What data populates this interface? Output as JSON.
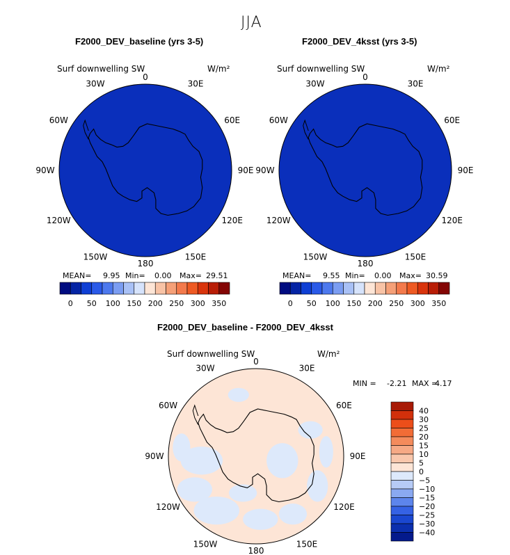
{
  "figure": {
    "season": "JJA"
  },
  "chart_data": [
    {
      "type": "heatmap",
      "title": "F2000_DEV_baseline (yrs 3-5)",
      "variable": "Surf downwelling SW",
      "units": "W/m²",
      "projection": "south polar stereographic",
      "field": "uniform 0–50 W/m² (polar night)",
      "fill_color": "#0a2fbb",
      "stats": {
        "mean_label": "MEAN=",
        "mean": "9.95",
        "min_label": "Min=",
        "min": "0.00",
        "max_label": "Max=",
        "max": "29.51"
      },
      "colorbar": {
        "orientation": "horizontal",
        "tick_labels": [
          "0",
          "50",
          "100",
          "150",
          "200",
          "250",
          "300",
          "350"
        ],
        "colors": [
          "#000c80",
          "#0524a4",
          "#0f3fd4",
          "#2a5ae8",
          "#4d79ee",
          "#7b9df2",
          "#a9c1f6",
          "#d6e3fb",
          "#fde5d6",
          "#f8c3a6",
          "#f5a078",
          "#f37a4c",
          "#ee5a23",
          "#d9340c",
          "#b81d06",
          "#830504"
        ]
      },
      "lon_labels": [
        "0",
        "30E",
        "60E",
        "90E",
        "120E",
        "150E",
        "180",
        "150W",
        "120W",
        "90W",
        "60W",
        "30W"
      ]
    },
    {
      "type": "heatmap",
      "title": "F2000_DEV_4ksst (yrs 3-5)",
      "variable": "Surf downwelling SW",
      "units": "W/m²",
      "projection": "south polar stereographic",
      "field": "uniform 0–50 W/m² (polar night)",
      "fill_color": "#0a2fbb",
      "stats": {
        "mean_label": "MEAN=",
        "mean": "9.55",
        "min_label": "Min=",
        "min": "0.00",
        "max_label": "Max=",
        "max": "30.59"
      },
      "colorbar": {
        "orientation": "horizontal",
        "tick_labels": [
          "0",
          "50",
          "100",
          "150",
          "200",
          "250",
          "300",
          "350"
        ],
        "colors": [
          "#000c80",
          "#0524a4",
          "#0f3fd4",
          "#2a5ae8",
          "#4d79ee",
          "#7b9df2",
          "#a9c1f6",
          "#d6e3fb",
          "#fde5d6",
          "#f8c3a6",
          "#f5a078",
          "#f37a4c",
          "#ee5a23",
          "#d9340c",
          "#b81d06",
          "#830504"
        ]
      },
      "lon_labels": [
        "0",
        "30E",
        "60E",
        "90E",
        "120E",
        "150E",
        "180",
        "150W",
        "120W",
        "90W",
        "60W",
        "30W"
      ]
    },
    {
      "type": "heatmap",
      "title": "F2000_DEV_baseline - F2000_DEV_4ksst",
      "variable": "Surf downwelling SW",
      "units": "W/m²",
      "projection": "south polar stereographic",
      "field": "mostly 0 to 5 W/m² with patches of -5 to 0",
      "fill_color": "#fde5d6",
      "patch_color": "#dde9fb",
      "stats": {
        "min_label": "MIN =",
        "min": "-2.21",
        "max_label": "MAX =",
        "max": "4.17"
      },
      "colorbar": {
        "orientation": "vertical",
        "tick_labels": [
          "40",
          "30",
          "25",
          "20",
          "15",
          "10",
          "5",
          "0",
          "−5",
          "−10",
          "−15",
          "−20",
          "−25",
          "−30",
          "−40"
        ],
        "colors": [
          "#a81a06",
          "#d2300b",
          "#ec4e1a",
          "#f26c36",
          "#f48b5c",
          "#f6a985",
          "#f9c7ac",
          "#fde5d6",
          "#dde9fb",
          "#b6cbf6",
          "#8aa9f1",
          "#5d85ec",
          "#3562e4",
          "#1a47d0",
          "#0b2fae",
          "#041a8c"
        ]
      },
      "lon_labels": [
        "0",
        "30E",
        "60E",
        "90E",
        "120E",
        "150E",
        "180",
        "150W",
        "120W",
        "90W",
        "60W",
        "30W"
      ]
    }
  ]
}
